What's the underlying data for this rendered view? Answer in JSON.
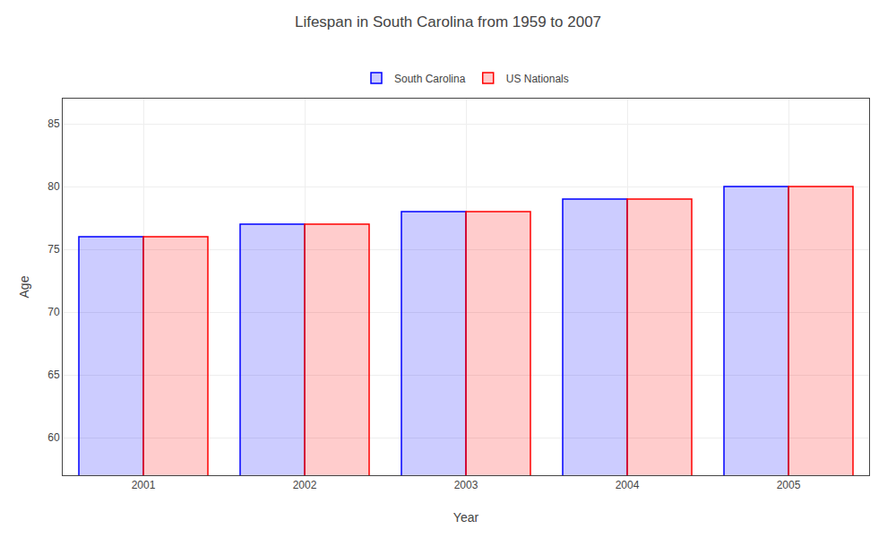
{
  "chart_data": {
    "type": "bar",
    "title": "Lifespan in South Carolina from 1959 to 2007",
    "xlabel": "Year",
    "ylabel": "Age",
    "categories": [
      "2001",
      "2002",
      "2003",
      "2004",
      "2005"
    ],
    "series": [
      {
        "name": "South Carolina",
        "color": "#0000ff",
        "values": [
          76,
          77,
          78,
          79,
          80
        ]
      },
      {
        "name": "US Nationals",
        "color": "#ff0000",
        "values": [
          76,
          77,
          78,
          79,
          80
        ]
      }
    ],
    "ylim": [
      57,
      87
    ],
    "yticks": [
      60,
      65,
      70,
      75,
      80,
      85
    ],
    "grid": true,
    "legend": "top"
  }
}
